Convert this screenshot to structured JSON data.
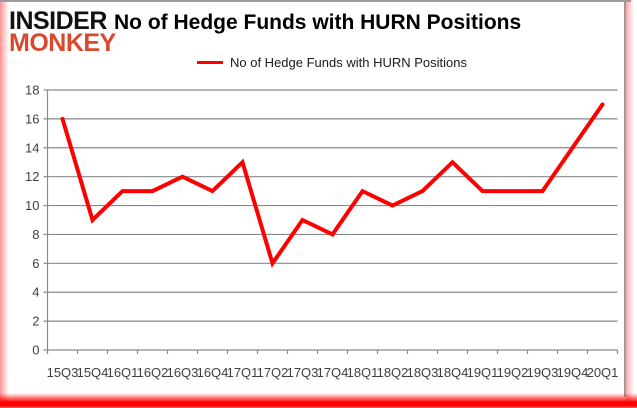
{
  "branding": {
    "logo_line1": "INSIDER",
    "logo_line2": "MONKEY"
  },
  "header": {
    "title": "No of Hedge Funds with HURN Positions"
  },
  "legend": {
    "label": "No of Hedge Funds with HURN Positions"
  },
  "chart_data": {
    "type": "line",
    "title": "No of Hedge Funds with HURN Positions",
    "categories": [
      "15Q3",
      "15Q4",
      "16Q1",
      "16Q2",
      "16Q3",
      "16Q4",
      "17Q1",
      "17Q2",
      "17Q3",
      "17Q4",
      "18Q1",
      "18Q2",
      "18Q3",
      "18Q4",
      "19Q1",
      "19Q2",
      "19Q3",
      "19Q4",
      "20Q1"
    ],
    "series": [
      {
        "name": "No of Hedge Funds with HURN Positions",
        "color": "#ff0000",
        "values": [
          16,
          9,
          11,
          11,
          12,
          11,
          13,
          6,
          9,
          8,
          11,
          10,
          11,
          13,
          11,
          11,
          11,
          14,
          17
        ]
      }
    ],
    "xlabel": "",
    "ylabel": "",
    "ylim": [
      0,
      18
    ],
    "ytick_step": 2,
    "grid": "horizontal",
    "legend_position": "top-center"
  },
  "colors": {
    "series_red": "#ff0000",
    "logo_black": "#111111",
    "logo_red": "#d9492f",
    "grid_gray": "#8a8a8a",
    "axis_text": "#404040",
    "title_text": "#000000",
    "border_gray": "#9a9a9a",
    "glow_pink": "#ff9e9e"
  }
}
